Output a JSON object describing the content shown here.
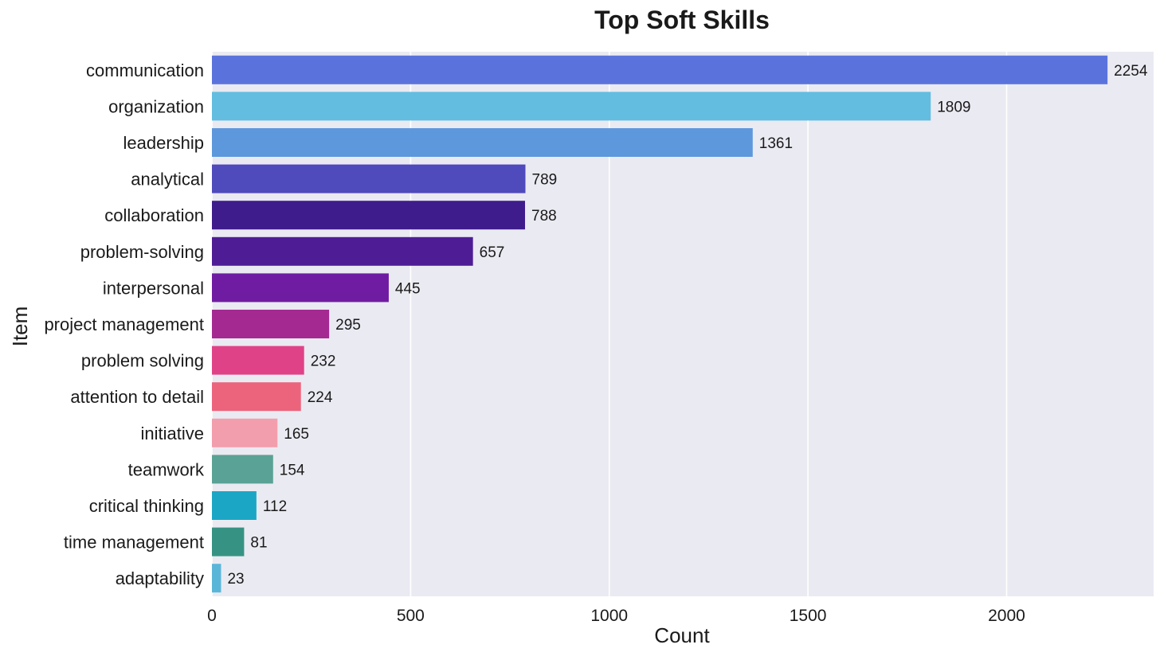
{
  "chart_data": {
    "type": "bar",
    "orientation": "horizontal",
    "title": "Top Soft Skills",
    "xlabel": "Count",
    "ylabel": "Item",
    "xlim": [
      0,
      2370
    ],
    "xticks": [
      0,
      500,
      1000,
      1500,
      2000
    ],
    "xtick_labels": [
      "0",
      "500",
      "1000",
      "1500",
      "2000"
    ],
    "grid": true,
    "background": "#eaeaf2",
    "categories": [
      "communication",
      "organization",
      "leadership",
      "analytical",
      "collaboration",
      "problem-solving",
      "interpersonal",
      "project management",
      "problem solving",
      "attention to detail",
      "initiative",
      "teamwork",
      "critical thinking",
      "time management",
      "adaptability"
    ],
    "values": [
      2254,
      1809,
      1361,
      789,
      788,
      657,
      445,
      295,
      232,
      224,
      165,
      154,
      112,
      81,
      23
    ],
    "value_labels": [
      "2254",
      "1809",
      "1361",
      "789",
      "788",
      "657",
      "445",
      "295",
      "232",
      "224",
      "165",
      "154",
      "112",
      "81",
      "23"
    ],
    "colors": [
      "#5a73dc",
      "#62bde0",
      "#5d98dc",
      "#4f4bbc",
      "#3f1c8c",
      "#4e1d96",
      "#701ca2",
      "#a42a92",
      "#e04288",
      "#ec647c",
      "#f39eac",
      "#5aa295",
      "#1ca6c5",
      "#369383",
      "#5ab6d9"
    ]
  }
}
